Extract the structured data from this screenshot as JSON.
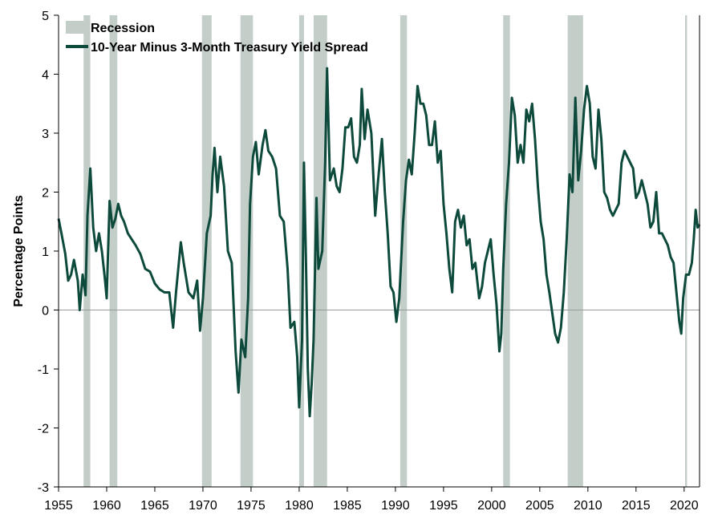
{
  "chart_data": {
    "type": "line",
    "title": "",
    "xlabel": "",
    "ylabel": "Percentage Points",
    "xlim": [
      1955,
      2021.6
    ],
    "ylim": [
      -3,
      5
    ],
    "x_ticks": [
      "1955",
      "1960",
      "1965",
      "1970",
      "1975",
      "1980",
      "1985",
      "1990",
      "1995",
      "2000",
      "2005",
      "2010",
      "2015",
      "2020"
    ],
    "y_ticks": [
      "5",
      "4",
      "3",
      "2",
      "1",
      "0",
      "-1",
      "-2",
      "-3"
    ],
    "grid": false,
    "zero_line": true,
    "legend_position": "top-left",
    "legend": {
      "recession": "Recession",
      "series": "10-Year Minus 3-Month Treasury Yield Spread"
    },
    "colors": {
      "series": "#0d4a3c",
      "recession": "#c3cec9",
      "axis": "#000000",
      "zero_line": "#999999"
    },
    "recessions": [
      [
        1957.6,
        1958.3
      ],
      [
        1960.3,
        1961.1
      ],
      [
        1969.9,
        1970.9
      ],
      [
        1973.9,
        1975.2
      ],
      [
        1980.0,
        1980.5
      ],
      [
        1981.5,
        1982.9
      ],
      [
        1990.5,
        1991.2
      ],
      [
        2001.2,
        2001.9
      ],
      [
        2007.9,
        2009.5
      ],
      [
        2020.1,
        2020.3
      ]
    ],
    "series": [
      {
        "name": "10-Year Minus 3-Month Treasury Yield Spread",
        "points": [
          [
            1955.0,
            1.55
          ],
          [
            1955.3,
            1.3
          ],
          [
            1955.7,
            0.95
          ],
          [
            1956.0,
            0.5
          ],
          [
            1956.3,
            0.6
          ],
          [
            1956.6,
            0.85
          ],
          [
            1957.0,
            0.5
          ],
          [
            1957.2,
            0.0
          ],
          [
            1957.5,
            0.6
          ],
          [
            1957.8,
            0.25
          ],
          [
            1958.0,
            1.6
          ],
          [
            1958.3,
            2.4
          ],
          [
            1958.6,
            1.4
          ],
          [
            1958.9,
            1.0
          ],
          [
            1959.2,
            1.3
          ],
          [
            1959.5,
            1.0
          ],
          [
            1959.8,
            0.55
          ],
          [
            1960.0,
            0.2
          ],
          [
            1960.3,
            1.85
          ],
          [
            1960.6,
            1.4
          ],
          [
            1960.9,
            1.55
          ],
          [
            1961.2,
            1.8
          ],
          [
            1961.5,
            1.6
          ],
          [
            1961.8,
            1.5
          ],
          [
            1962.2,
            1.3
          ],
          [
            1962.6,
            1.2
          ],
          [
            1963.0,
            1.1
          ],
          [
            1963.5,
            0.95
          ],
          [
            1964.0,
            0.7
          ],
          [
            1964.5,
            0.65
          ],
          [
            1965.0,
            0.45
          ],
          [
            1965.5,
            0.35
          ],
          [
            1966.0,
            0.3
          ],
          [
            1966.5,
            0.3
          ],
          [
            1966.9,
            -0.3
          ],
          [
            1967.2,
            0.3
          ],
          [
            1967.7,
            1.15
          ],
          [
            1968.0,
            0.8
          ],
          [
            1968.5,
            0.3
          ],
          [
            1969.0,
            0.2
          ],
          [
            1969.4,
            0.5
          ],
          [
            1969.7,
            -0.35
          ],
          [
            1970.0,
            0.2
          ],
          [
            1970.4,
            1.3
          ],
          [
            1970.8,
            1.6
          ],
          [
            1971.0,
            2.3
          ],
          [
            1971.2,
            2.75
          ],
          [
            1971.5,
            2.0
          ],
          [
            1971.8,
            2.6
          ],
          [
            1972.2,
            2.1
          ],
          [
            1972.6,
            1.0
          ],
          [
            1973.0,
            0.8
          ],
          [
            1973.4,
            -0.7
          ],
          [
            1973.7,
            -1.4
          ],
          [
            1974.0,
            -0.5
          ],
          [
            1974.4,
            -0.8
          ],
          [
            1974.7,
            0.2
          ],
          [
            1974.9,
            1.8
          ],
          [
            1975.2,
            2.6
          ],
          [
            1975.5,
            2.85
          ],
          [
            1975.8,
            2.3
          ],
          [
            1976.2,
            2.8
          ],
          [
            1976.5,
            3.05
          ],
          [
            1976.8,
            2.7
          ],
          [
            1977.2,
            2.6
          ],
          [
            1977.6,
            2.4
          ],
          [
            1978.0,
            1.6
          ],
          [
            1978.4,
            1.5
          ],
          [
            1978.8,
            0.7
          ],
          [
            1979.1,
            -0.3
          ],
          [
            1979.5,
            -0.2
          ],
          [
            1979.8,
            -0.8
          ],
          [
            1980.0,
            -1.65
          ],
          [
            1980.3,
            -0.5
          ],
          [
            1980.5,
            2.5
          ],
          [
            1980.7,
            0.9
          ],
          [
            1980.9,
            -1.0
          ],
          [
            1981.1,
            -1.8
          ],
          [
            1981.3,
            -1.25
          ],
          [
            1981.5,
            -0.5
          ],
          [
            1981.8,
            1.9
          ],
          [
            1982.0,
            0.7
          ],
          [
            1982.4,
            1.0
          ],
          [
            1982.7,
            2.5
          ],
          [
            1982.9,
            4.1
          ],
          [
            1983.2,
            2.2
          ],
          [
            1983.6,
            2.4
          ],
          [
            1983.9,
            2.1
          ],
          [
            1984.2,
            2.0
          ],
          [
            1984.5,
            2.4
          ],
          [
            1984.8,
            3.1
          ],
          [
            1985.1,
            3.1
          ],
          [
            1985.4,
            3.25
          ],
          [
            1985.7,
            2.6
          ],
          [
            1986.0,
            2.5
          ],
          [
            1986.3,
            2.8
          ],
          [
            1986.5,
            3.75
          ],
          [
            1986.8,
            2.9
          ],
          [
            1987.1,
            3.4
          ],
          [
            1987.5,
            3.0
          ],
          [
            1987.9,
            1.6
          ],
          [
            1988.2,
            2.2
          ],
          [
            1988.6,
            2.9
          ],
          [
            1988.9,
            2.0
          ],
          [
            1989.2,
            1.3
          ],
          [
            1989.5,
            0.4
          ],
          [
            1989.8,
            0.3
          ],
          [
            1990.1,
            -0.2
          ],
          [
            1990.4,
            0.2
          ],
          [
            1990.8,
            1.5
          ],
          [
            1991.1,
            2.2
          ],
          [
            1991.4,
            2.55
          ],
          [
            1991.7,
            2.3
          ],
          [
            1992.0,
            3.0
          ],
          [
            1992.3,
            3.8
          ],
          [
            1992.6,
            3.5
          ],
          [
            1992.9,
            3.5
          ],
          [
            1993.2,
            3.3
          ],
          [
            1993.5,
            2.8
          ],
          [
            1993.8,
            2.8
          ],
          [
            1994.1,
            3.2
          ],
          [
            1994.4,
            2.5
          ],
          [
            1994.7,
            2.7
          ],
          [
            1995.0,
            1.8
          ],
          [
            1995.3,
            1.3
          ],
          [
            1995.6,
            0.7
          ],
          [
            1995.9,
            0.3
          ],
          [
            1996.2,
            1.5
          ],
          [
            1996.5,
            1.7
          ],
          [
            1996.8,
            1.4
          ],
          [
            1997.1,
            1.6
          ],
          [
            1997.4,
            1.1
          ],
          [
            1997.7,
            1.2
          ],
          [
            1998.0,
            0.7
          ],
          [
            1998.3,
            0.8
          ],
          [
            1998.7,
            0.2
          ],
          [
            1999.0,
            0.4
          ],
          [
            1999.3,
            0.8
          ],
          [
            1999.6,
            1.0
          ],
          [
            1999.9,
            1.2
          ],
          [
            2000.2,
            0.6
          ],
          [
            2000.5,
            0.1
          ],
          [
            2000.8,
            -0.7
          ],
          [
            2001.0,
            -0.4
          ],
          [
            2001.2,
            0.7
          ],
          [
            2001.5,
            1.8
          ],
          [
            2001.8,
            2.5
          ],
          [
            2002.1,
            3.6
          ],
          [
            2002.4,
            3.3
          ],
          [
            2002.7,
            2.5
          ],
          [
            2003.0,
            2.8
          ],
          [
            2003.3,
            2.5
          ],
          [
            2003.6,
            3.4
          ],
          [
            2003.9,
            3.2
          ],
          [
            2004.2,
            3.5
          ],
          [
            2004.5,
            2.9
          ],
          [
            2004.8,
            2.1
          ],
          [
            2005.1,
            1.5
          ],
          [
            2005.4,
            1.2
          ],
          [
            2005.7,
            0.6
          ],
          [
            2006.0,
            0.3
          ],
          [
            2006.3,
            -0.05
          ],
          [
            2006.6,
            -0.4
          ],
          [
            2006.9,
            -0.55
          ],
          [
            2007.2,
            -0.3
          ],
          [
            2007.5,
            0.3
          ],
          [
            2007.8,
            1.2
          ],
          [
            2008.1,
            2.3
          ],
          [
            2008.4,
            2.0
          ],
          [
            2008.7,
            3.6
          ],
          [
            2009.0,
            2.2
          ],
          [
            2009.3,
            2.7
          ],
          [
            2009.6,
            3.4
          ],
          [
            2009.9,
            3.8
          ],
          [
            2010.2,
            3.5
          ],
          [
            2010.5,
            2.6
          ],
          [
            2010.8,
            2.4
          ],
          [
            2011.1,
            3.4
          ],
          [
            2011.4,
            2.9
          ],
          [
            2011.7,
            2.0
          ],
          [
            2012.0,
            1.9
          ],
          [
            2012.3,
            1.7
          ],
          [
            2012.6,
            1.6
          ],
          [
            2012.9,
            1.7
          ],
          [
            2013.2,
            1.8
          ],
          [
            2013.5,
            2.5
          ],
          [
            2013.8,
            2.7
          ],
          [
            2014.1,
            2.6
          ],
          [
            2014.4,
            2.5
          ],
          [
            2014.7,
            2.4
          ],
          [
            2015.0,
            1.9
          ],
          [
            2015.3,
            2.0
          ],
          [
            2015.6,
            2.2
          ],
          [
            2015.9,
            2.0
          ],
          [
            2016.2,
            1.8
          ],
          [
            2016.5,
            1.4
          ],
          [
            2016.8,
            1.5
          ],
          [
            2017.1,
            2.0
          ],
          [
            2017.4,
            1.3
          ],
          [
            2017.7,
            1.3
          ],
          [
            2018.0,
            1.2
          ],
          [
            2018.3,
            1.1
          ],
          [
            2018.6,
            0.9
          ],
          [
            2018.9,
            0.8
          ],
          [
            2019.2,
            0.3
          ],
          [
            2019.5,
            -0.2
          ],
          [
            2019.7,
            -0.4
          ],
          [
            2019.9,
            0.2
          ],
          [
            2020.2,
            0.6
          ],
          [
            2020.5,
            0.6
          ],
          [
            2020.8,
            0.8
          ],
          [
            2021.0,
            1.2
          ],
          [
            2021.2,
            1.7
          ],
          [
            2021.4,
            1.4
          ],
          [
            2021.6,
            1.45
          ]
        ]
      }
    ]
  }
}
